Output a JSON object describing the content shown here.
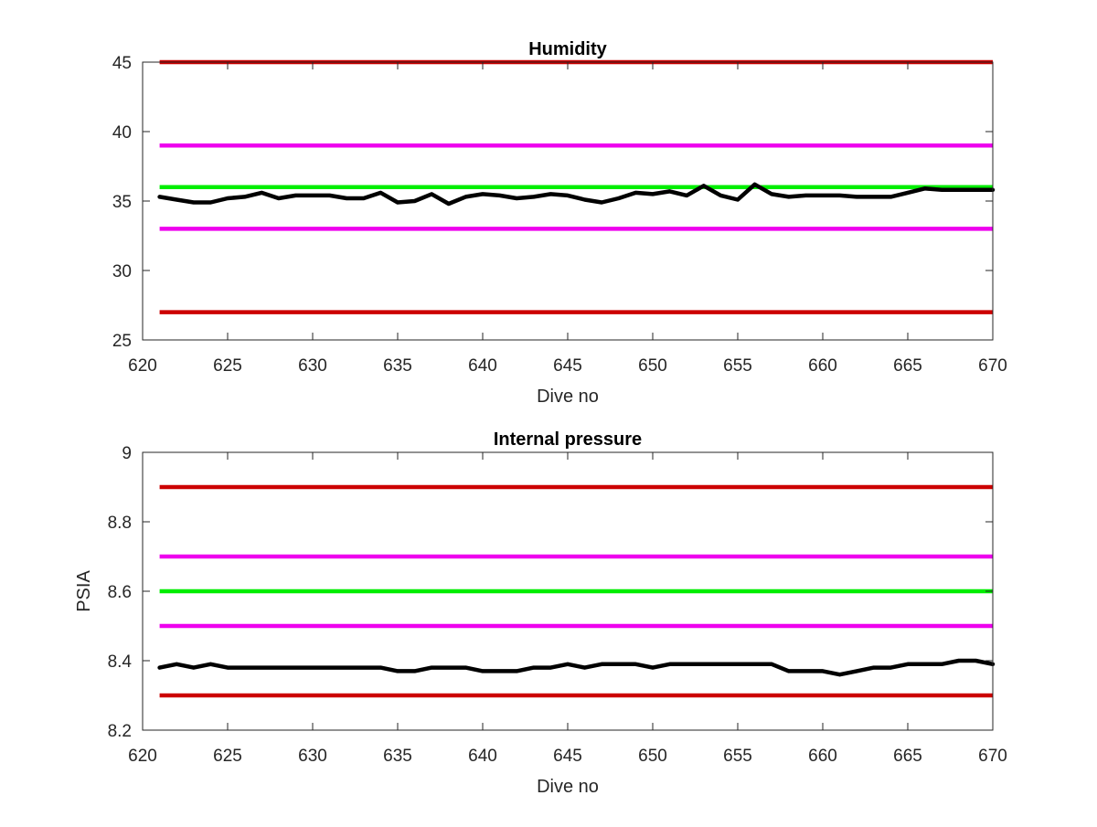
{
  "chart_data": [
    {
      "type": "line",
      "title": "Humidity",
      "xlabel": "Dive no",
      "ylabel": "",
      "xlim": [
        620,
        670
      ],
      "ylim": [
        25,
        45
      ],
      "xticks": [
        "620",
        "625",
        "630",
        "635",
        "640",
        "645",
        "650",
        "655",
        "660",
        "665",
        "670"
      ],
      "yticks": [
        "25",
        "30",
        "35",
        "40",
        "45"
      ],
      "grid": false,
      "legend": "none",
      "reference_lines": [
        {
          "y": 45,
          "color": "#cc0000"
        },
        {
          "y": 39,
          "color": "#ee00ee"
        },
        {
          "y": 36,
          "color": "#00ee00"
        },
        {
          "y": 33,
          "color": "#ee00ee"
        },
        {
          "y": 27,
          "color": "#cc0000"
        }
      ],
      "series": [
        {
          "color": "#000000",
          "x": [
            621,
            622,
            623,
            624,
            625,
            626,
            627,
            628,
            629,
            630,
            631,
            632,
            633,
            634,
            635,
            636,
            637,
            638,
            639,
            640,
            641,
            642,
            643,
            644,
            645,
            646,
            647,
            648,
            649,
            650,
            651,
            652,
            653,
            654,
            655,
            656,
            657,
            658,
            659,
            660,
            661,
            662,
            663,
            664,
            665,
            666,
            667,
            668,
            669,
            670
          ],
          "values": [
            35.3,
            35.1,
            34.9,
            34.9,
            35.2,
            35.3,
            35.6,
            35.2,
            35.4,
            35.4,
            35.4,
            35.2,
            35.2,
            35.6,
            34.9,
            35.0,
            35.5,
            34.8,
            35.3,
            35.5,
            35.4,
            35.2,
            35.3,
            35.5,
            35.4,
            35.1,
            34.9,
            35.2,
            35.6,
            35.5,
            35.7,
            35.4,
            36.1,
            35.4,
            35.1,
            36.2,
            35.5,
            35.3,
            35.4,
            35.4,
            35.4,
            35.3,
            35.3,
            35.3,
            35.6,
            35.9,
            35.8,
            35.8,
            35.8,
            35.8
          ]
        }
      ]
    },
    {
      "type": "line",
      "title": "Internal pressure",
      "xlabel": "Dive no",
      "ylabel": "PSIA",
      "xlim": [
        620,
        670
      ],
      "ylim": [
        8.2,
        9
      ],
      "xticks": [
        "620",
        "625",
        "630",
        "635",
        "640",
        "645",
        "650",
        "655",
        "660",
        "665",
        "670"
      ],
      "yticks": [
        "8.2",
        "8.4",
        "8.6",
        "8.8",
        "9"
      ],
      "grid": false,
      "legend": "none",
      "reference_lines": [
        {
          "y": 8.9,
          "color": "#cc0000"
        },
        {
          "y": 8.7,
          "color": "#ee00ee"
        },
        {
          "y": 8.6,
          "color": "#00ee00"
        },
        {
          "y": 8.5,
          "color": "#ee00ee"
        },
        {
          "y": 8.3,
          "color": "#cc0000"
        }
      ],
      "series": [
        {
          "color": "#000000",
          "x": [
            621,
            622,
            623,
            624,
            625,
            626,
            627,
            628,
            629,
            630,
            631,
            632,
            633,
            634,
            635,
            636,
            637,
            638,
            639,
            640,
            641,
            642,
            643,
            644,
            645,
            646,
            647,
            648,
            649,
            650,
            651,
            652,
            653,
            654,
            655,
            656,
            657,
            658,
            659,
            660,
            661,
            662,
            663,
            664,
            665,
            666,
            667,
            668,
            669,
            670
          ],
          "values": [
            8.38,
            8.39,
            8.38,
            8.39,
            8.38,
            8.38,
            8.38,
            8.38,
            8.38,
            8.38,
            8.38,
            8.38,
            8.38,
            8.38,
            8.37,
            8.37,
            8.38,
            8.38,
            8.38,
            8.37,
            8.37,
            8.37,
            8.38,
            8.38,
            8.39,
            8.38,
            8.39,
            8.39,
            8.39,
            8.38,
            8.39,
            8.39,
            8.39,
            8.39,
            8.39,
            8.39,
            8.39,
            8.37,
            8.37,
            8.37,
            8.36,
            8.37,
            8.38,
            8.38,
            8.39,
            8.39,
            8.39,
            8.4,
            8.4,
            8.39
          ]
        }
      ]
    }
  ]
}
